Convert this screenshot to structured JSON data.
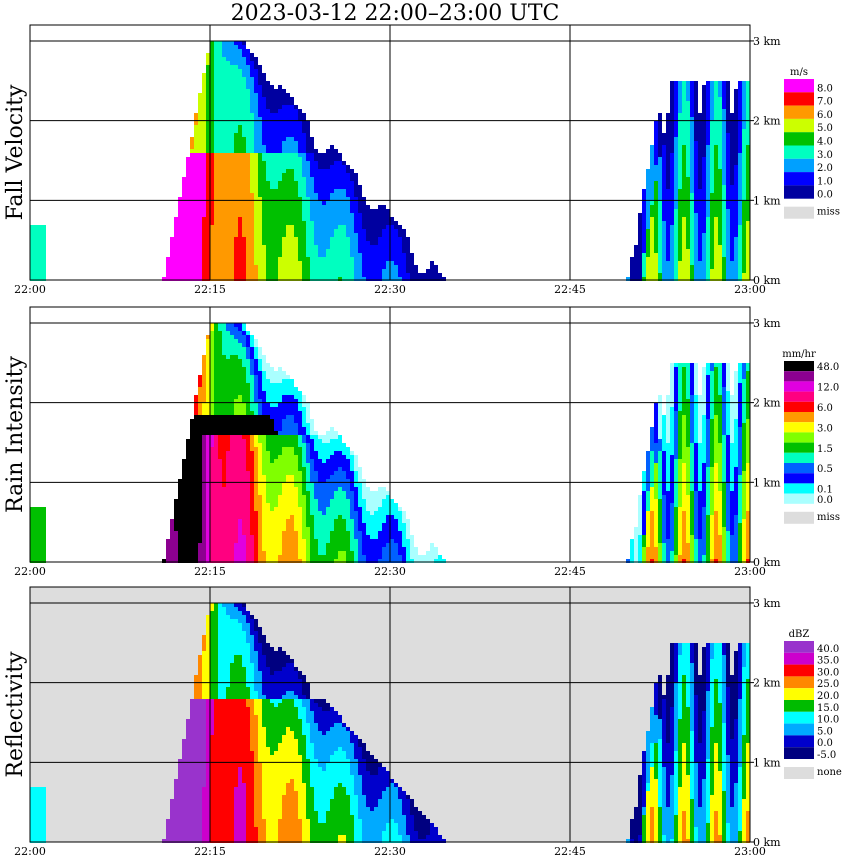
{
  "title": "2023-03-12   22:00–23:00 UTC",
  "chart_data": {
    "type": "heatmap",
    "title": "2023-03-12   22:00–23:00 UTC",
    "x_ticks": [
      "22:00",
      "22:15",
      "22:30",
      "22:45",
      "23:00"
    ],
    "y_ticks": [
      "0 km",
      "1 km",
      "2 km",
      "3 km"
    ],
    "ylim": [
      0,
      3.2
    ],
    "grid": true,
    "panels": [
      {
        "ylabel": "Fall Velocity",
        "unit": "m/s",
        "legend": [
          {
            "label": "8.0",
            "color": "#ff00ff"
          },
          {
            "label": "7.0",
            "color": "#ff0000"
          },
          {
            "label": "6.0",
            "color": "#ff9900"
          },
          {
            "label": "5.0",
            "color": "#ccff00"
          },
          {
            "label": "4.0",
            "color": "#00c000"
          },
          {
            "label": "3.0",
            "color": "#00ffc0"
          },
          {
            "label": "2.0",
            "color": "#00a0ff"
          },
          {
            "label": "1.0",
            "color": "#0000ff"
          },
          {
            "label": "0.0",
            "color": "#0000a0"
          }
        ],
        "missing": {
          "label": "miss",
          "color": "#dddddd"
        }
      },
      {
        "ylabel": "Rain Intensity",
        "unit": "mm/hr",
        "legend": [
          {
            "label": "48.0",
            "color": "#000000"
          },
          {
            "label": "",
            "color": "#8c0090"
          },
          {
            "label": "12.0",
            "color": "#e000e0"
          },
          {
            "label": "",
            "color": "#ff0080"
          },
          {
            "label": "6.0",
            "color": "#ff0000"
          },
          {
            "label": "",
            "color": "#ff9900"
          },
          {
            "label": "3.0",
            "color": "#ffff00"
          },
          {
            "label": "",
            "color": "#80ff00"
          },
          {
            "label": "1.5",
            "color": "#00c000"
          },
          {
            "label": "",
            "color": "#00ffc0"
          },
          {
            "label": "0.5",
            "color": "#0060ff"
          },
          {
            "label": "",
            "color": "#0000ff"
          },
          {
            "label": "0.1",
            "color": "#00ffff"
          },
          {
            "label": "0.0",
            "color": "#aaffff"
          }
        ],
        "missing": {
          "label": "miss",
          "color": "#dddddd"
        }
      },
      {
        "ylabel": "Reflectivity",
        "unit": "dBZ",
        "legend": [
          {
            "label": "40.0",
            "color": "#9933cc"
          },
          {
            "label": "35.0",
            "color": "#cc00cc"
          },
          {
            "label": "30.0",
            "color": "#ff0000"
          },
          {
            "label": "25.0",
            "color": "#ff8800"
          },
          {
            "label": "20.0",
            "color": "#ffff00"
          },
          {
            "label": "15.0",
            "color": "#00bb00"
          },
          {
            "label": "10.0",
            "color": "#00ffff"
          },
          {
            "label": "5.0",
            "color": "#00aaff"
          },
          {
            "label": "0.0",
            "color": "#0000cc"
          },
          {
            "label": "-5.0",
            "color": "#000080"
          }
        ],
        "missing": {
          "label": "none",
          "color": "#dddddd"
        }
      }
    ],
    "time_labels": [
      "22:00",
      "22:15",
      "22:30",
      "22:45",
      "23:00"
    ]
  }
}
